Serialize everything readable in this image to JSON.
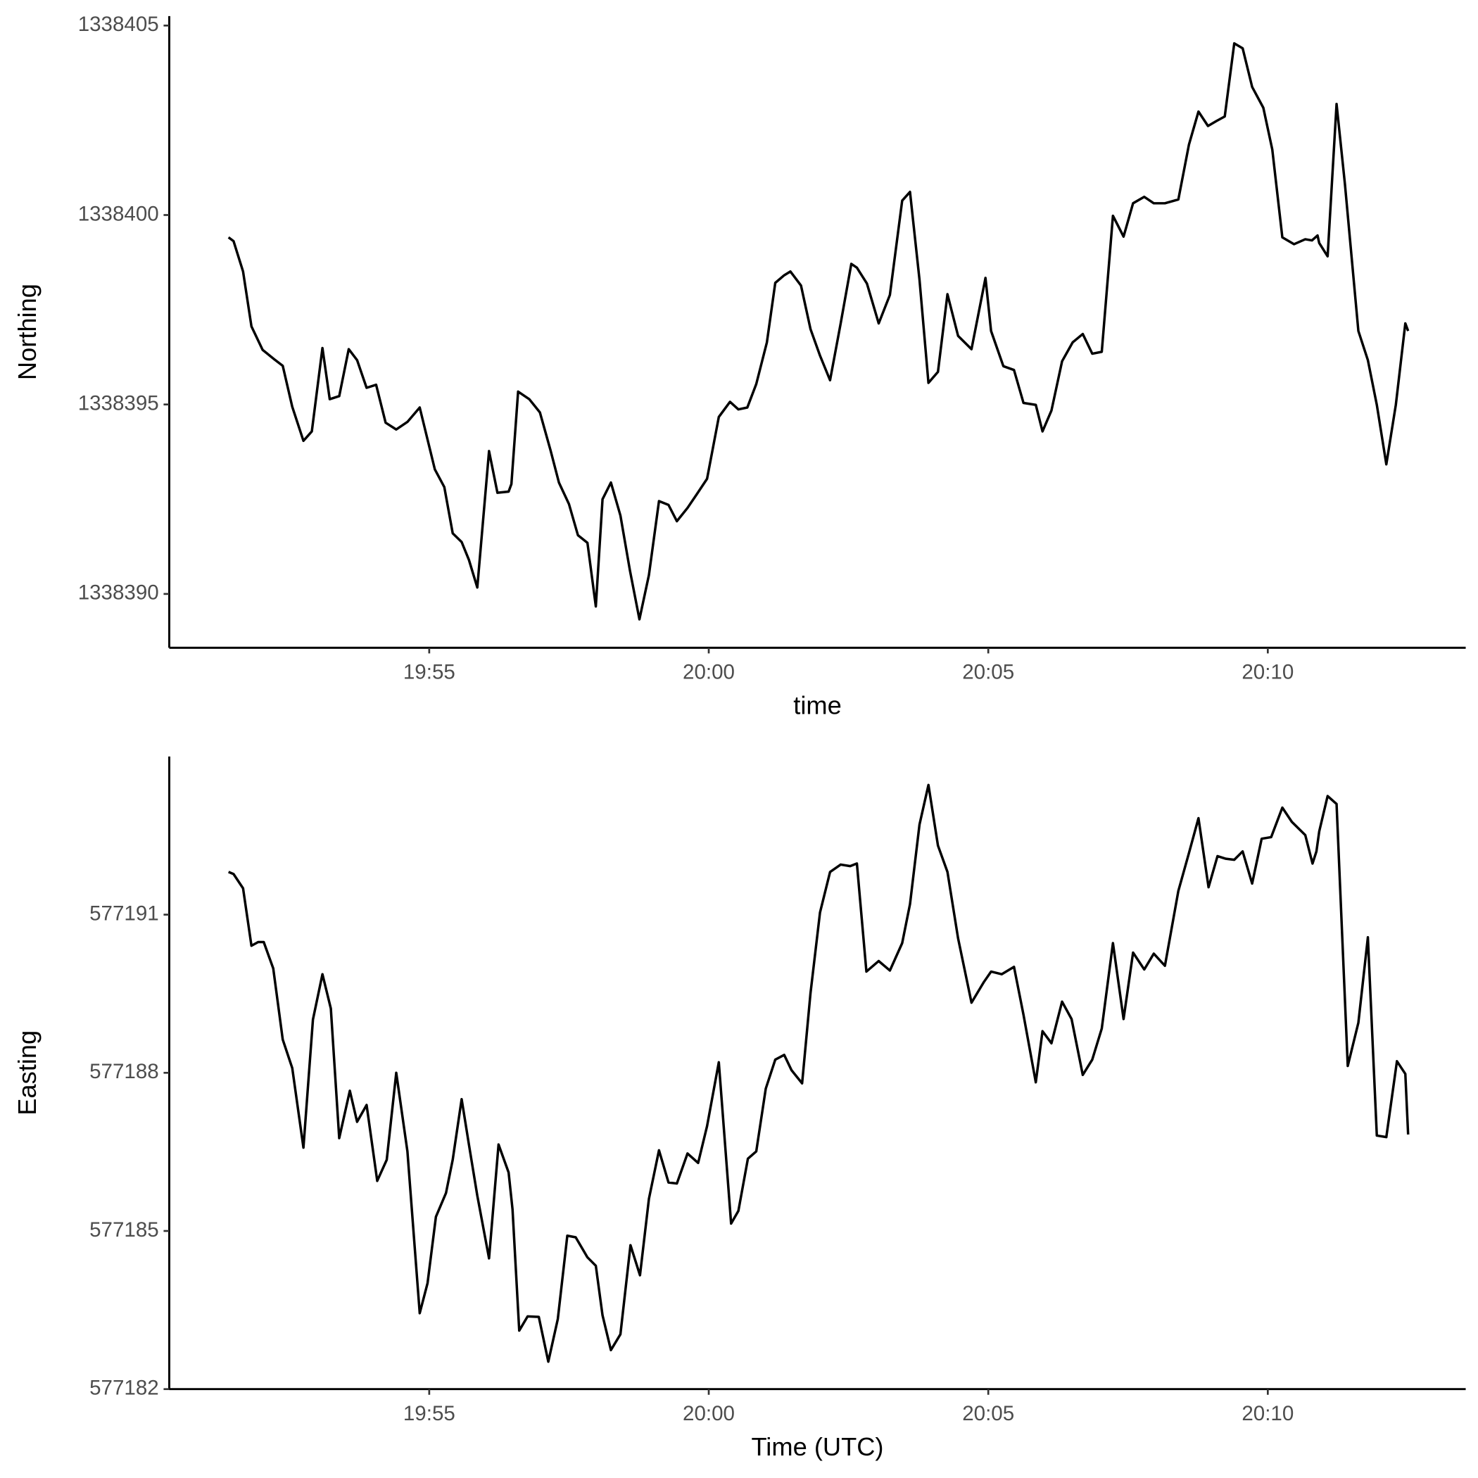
{
  "chart_data": [
    {
      "type": "line",
      "x_label": "time",
      "y_label": "Northing",
      "color": "#000000",
      "xlim": [
        1190.35,
        1213.54
      ],
      "xticks": [
        {
          "value": 1195,
          "label": "19:55"
        },
        {
          "value": 1200,
          "label": "20:00"
        },
        {
          "value": 1205,
          "label": "20:05"
        },
        {
          "value": 1210,
          "label": "20:10"
        }
      ],
      "ylim": [
        1338388.58,
        1338405.25
      ],
      "yticks": [
        1338390,
        1338395,
        1338400,
        1338405
      ],
      "x": [
        1191.41,
        1191.5,
        1191.67,
        1191.82,
        1192.02,
        1192.23,
        1192.38,
        1192.55,
        1192.75,
        1192.9,
        1193.09,
        1193.22,
        1193.39,
        1193.56,
        1193.71,
        1193.88,
        1194.05,
        1194.22,
        1194.41,
        1194.61,
        1194.83,
        1195.1,
        1195.27,
        1195.42,
        1195.58,
        1195.71,
        1195.86,
        1196.07,
        1196.22,
        1196.42,
        1196.47,
        1196.59,
        1196.79,
        1196.98,
        1197.17,
        1197.32,
        1197.5,
        1197.66,
        1197.83,
        1197.98,
        1198.1,
        1198.25,
        1198.42,
        1198.59,
        1198.76,
        1198.93,
        1199.11,
        1199.28,
        1199.43,
        1199.62,
        1199.79,
        1199.97,
        1200.18,
        1200.38,
        1200.53,
        1200.69,
        1200.85,
        1201.04,
        1201.19,
        1201.35,
        1201.46,
        1201.65,
        1201.82,
        1201.99,
        1202.17,
        1202.36,
        1202.55,
        1202.65,
        1202.83,
        1203.04,
        1203.24,
        1203.46,
        1203.6,
        1203.77,
        1203.93,
        1204.1,
        1204.27,
        1204.46,
        1204.7,
        1204.95,
        1205.05,
        1205.27,
        1205.46,
        1205.63,
        1205.85,
        1205.97,
        1206.13,
        1206.32,
        1206.51,
        1206.69,
        1206.86,
        1207.03,
        1207.23,
        1207.42,
        1207.59,
        1207.79,
        1207.96,
        1208.16,
        1208.4,
        1208.59,
        1208.76,
        1208.93,
        1209.08,
        1209.23,
        1209.4,
        1209.55,
        1209.72,
        1209.92,
        1210.08,
        1210.26,
        1210.47,
        1210.67,
        1210.79,
        1210.89,
        1210.92,
        1211.07,
        1211.23,
        1211.38,
        1211.62,
        1211.79,
        1211.95,
        1212.12,
        1212.29,
        1212.46,
        1212.51
      ],
      "values": [
        1338399.41,
        1338399.31,
        1338398.51,
        1338397.06,
        1338396.44,
        1338396.19,
        1338396.02,
        1338394.94,
        1338394.04,
        1338394.29,
        1338396.49,
        1338395.14,
        1338395.22,
        1338396.46,
        1338396.17,
        1338395.44,
        1338395.52,
        1338394.52,
        1338394.34,
        1338394.54,
        1338394.92,
        1338393.29,
        1338392.82,
        1338391.6,
        1338391.37,
        1338390.9,
        1338390.17,
        1338393.77,
        1338392.67,
        1338392.7,
        1338392.9,
        1338395.34,
        1338395.14,
        1338394.79,
        1338393.79,
        1338392.94,
        1338392.37,
        1338391.55,
        1338391.35,
        1338389.67,
        1338392.5,
        1338392.94,
        1338392.07,
        1338390.62,
        1338389.33,
        1338390.5,
        1338392.45,
        1338392.35,
        1338391.92,
        1338392.27,
        1338392.64,
        1338393.04,
        1338394.67,
        1338395.07,
        1338394.87,
        1338394.92,
        1338395.54,
        1338396.64,
        1338398.21,
        1338398.41,
        1338398.51,
        1338398.14,
        1338396.99,
        1338396.29,
        1338395.64,
        1338397.14,
        1338398.71,
        1338398.61,
        1338398.19,
        1338397.14,
        1338397.89,
        1338400.38,
        1338400.61,
        1338398.29,
        1338395.57,
        1338395.86,
        1338397.91,
        1338396.81,
        1338396.46,
        1338398.34,
        1338396.94,
        1338396.01,
        1338395.91,
        1338395.04,
        1338394.99,
        1338394.29,
        1338394.84,
        1338396.14,
        1338396.64,
        1338396.86,
        1338396.34,
        1338396.39,
        1338399.98,
        1338399.43,
        1338400.31,
        1338400.48,
        1338400.31,
        1338400.31,
        1338400.41,
        1338401.86,
        1338402.73,
        1338402.35,
        1338402.48,
        1338402.6,
        1338404.53,
        1338404.4,
        1338403.38,
        1338402.83,
        1338401.73,
        1338399.41,
        1338399.23,
        1338399.36,
        1338399.33,
        1338399.46,
        1338399.26,
        1338398.91,
        1338402.93,
        1338400.81,
        1338396.94,
        1338396.17,
        1338394.99,
        1338393.42,
        1338394.99,
        1338397.14,
        1338396.94
      ]
    },
    {
      "type": "line",
      "x_label": "Time (UTC)",
      "y_label": "Easting",
      "color": "#000000",
      "xlim": [
        1190.35,
        1213.54
      ],
      "xticks": [
        {
          "value": 1195,
          "label": "19:55"
        },
        {
          "value": 1200,
          "label": "20:00"
        },
        {
          "value": 1205,
          "label": "20:05"
        },
        {
          "value": 1210,
          "label": "20:10"
        }
      ],
      "ylim": [
        577182,
        577194
      ],
      "yticks": [
        577182,
        577185,
        577188,
        577191
      ],
      "x": [
        1191.41,
        1191.5,
        1191.67,
        1191.82,
        1191.94,
        1192.04,
        1192.21,
        1192.38,
        1192.55,
        1192.75,
        1192.92,
        1193.09,
        1193.24,
        1193.39,
        1193.58,
        1193.71,
        1193.88,
        1194.07,
        1194.24,
        1194.41,
        1194.61,
        1194.83,
        1194.97,
        1195.12,
        1195.3,
        1195.42,
        1195.58,
        1195.71,
        1195.86,
        1196.07,
        1196.24,
        1196.42,
        1196.49,
        1196.61,
        1196.76,
        1196.96,
        1197.13,
        1197.3,
        1197.47,
        1197.62,
        1197.83,
        1197.98,
        1198.1,
        1198.25,
        1198.42,
        1198.6,
        1198.77,
        1198.93,
        1199.11,
        1199.28,
        1199.43,
        1199.62,
        1199.81,
        1199.97,
        1200.18,
        1200.4,
        1200.53,
        1200.7,
        1200.85,
        1201.02,
        1201.19,
        1201.35,
        1201.48,
        1201.67,
        1201.82,
        1201.99,
        1202.17,
        1202.36,
        1202.53,
        1202.65,
        1202.82,
        1203.04,
        1203.24,
        1203.46,
        1203.6,
        1203.77,
        1203.93,
        1204.1,
        1204.27,
        1204.46,
        1204.7,
        1204.92,
        1205.05,
        1205.24,
        1205.46,
        1205.63,
        1205.85,
        1205.97,
        1206.13,
        1206.32,
        1206.49,
        1206.69,
        1206.86,
        1207.03,
        1207.23,
        1207.42,
        1207.59,
        1207.79,
        1207.96,
        1208.16,
        1208.4,
        1208.59,
        1208.76,
        1208.94,
        1209.1,
        1209.25,
        1209.4,
        1209.55,
        1209.72,
        1209.89,
        1210.06,
        1210.26,
        1210.43,
        1210.67,
        1210.8,
        1210.87,
        1210.92,
        1211.07,
        1211.23,
        1211.43,
        1211.62,
        1211.79,
        1211.95,
        1212.12,
        1212.31,
        1212.46,
        1212.51
      ],
      "values": [
        577191.81,
        577191.77,
        577191.5,
        577190.41,
        577190.48,
        577190.48,
        577189.98,
        577188.63,
        577188.09,
        577186.58,
        577189.01,
        577189.87,
        577189.22,
        577186.76,
        577187.66,
        577187.07,
        577187.39,
        577185.95,
        577186.35,
        577188.0,
        577186.51,
        577183.44,
        577184.01,
        577185.27,
        577185.72,
        577186.35,
        577187.5,
        577186.64,
        577185.67,
        577184.48,
        577186.64,
        577186.11,
        577185.41,
        577183.11,
        577183.38,
        577183.37,
        577182.52,
        577183.33,
        577184.91,
        577184.88,
        577184.5,
        577184.34,
        577183.4,
        577182.74,
        577183.04,
        577184.73,
        577184.16,
        577185.61,
        577186.53,
        577185.92,
        577185.9,
        577186.47,
        577186.29,
        577186.99,
        577188.2,
        577185.14,
        577185.38,
        577186.37,
        577186.51,
        577187.7,
        577188.25,
        577188.34,
        577188.05,
        577187.8,
        577189.51,
        577191.04,
        577191.81,
        577191.95,
        577191.92,
        577191.97,
        577189.92,
        577190.12,
        577189.94,
        577190.46,
        577191.2,
        577192.71,
        577193.46,
        577192.31,
        577191.81,
        577190.55,
        577189.33,
        577189.72,
        577189.92,
        577189.87,
        577190.01,
        577189.1,
        577187.82,
        577188.79,
        577188.56,
        577189.35,
        577189.02,
        577187.96,
        577188.25,
        577188.84,
        577190.46,
        577189.02,
        577190.28,
        577189.96,
        577190.26,
        577190.03,
        577191.45,
        577192.17,
        577192.83,
        577191.52,
        577192.11,
        577192.06,
        577192.04,
        577192.2,
        577191.59,
        577192.44,
        577192.47,
        577193.03,
        577192.76,
        577192.51,
        577191.97,
        577192.2,
        577192.58,
        577193.25,
        577193.1,
        577188.13,
        577188.95,
        577190.57,
        577186.81,
        577186.78,
        577188.22,
        577187.98,
        577186.83
      ]
    }
  ]
}
